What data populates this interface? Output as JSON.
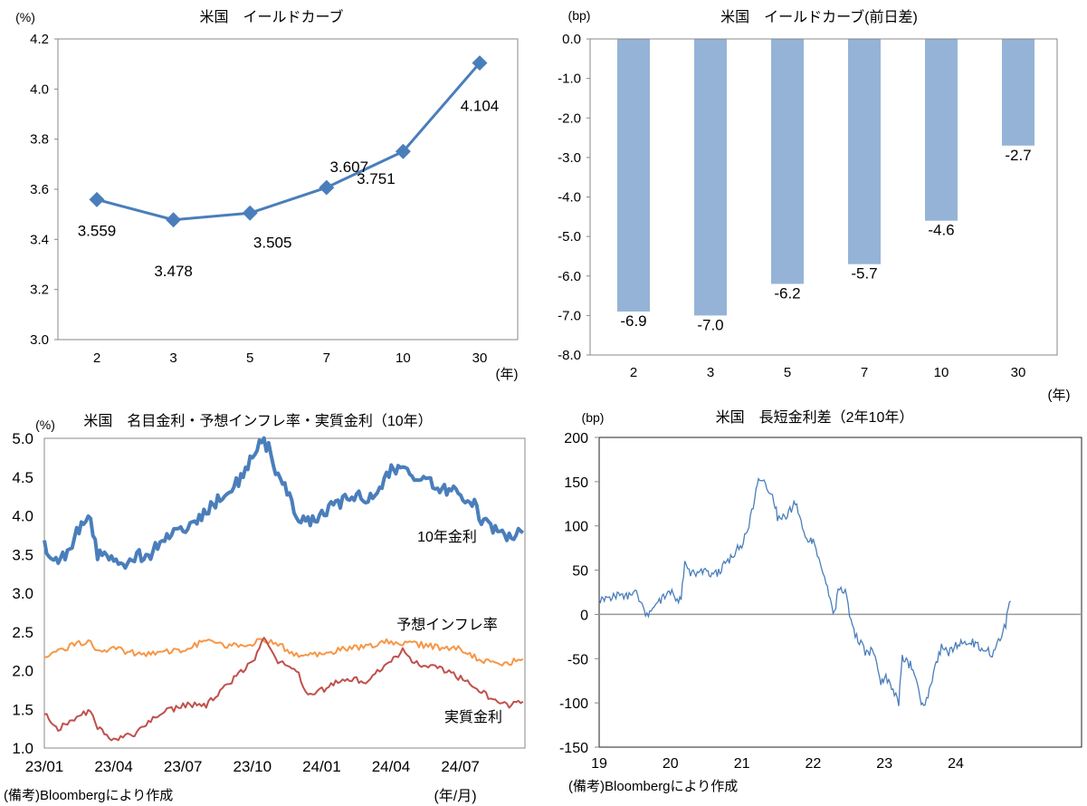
{
  "chart_data": [
    {
      "type": "line",
      "title": "米国　イールドカーブ",
      "ylabel": "(%)",
      "xlabel": "(年)",
      "ylim": [
        3.0,
        4.2
      ],
      "yticks": [
        "3.0",
        "3.2",
        "3.4",
        "3.6",
        "3.8",
        "4.0",
        "4.2"
      ],
      "categories": [
        "2",
        "3",
        "5",
        "7",
        "10",
        "30"
      ],
      "values": [
        3.559,
        3.478,
        3.505,
        3.607,
        3.751,
        4.104
      ],
      "labels": [
        "3.559",
        "3.478",
        "3.505",
        "3.607",
        "3.751",
        "4.104"
      ],
      "color": "#4a7ebb"
    },
    {
      "type": "bar",
      "title": "米国　イールドカーブ(前日差)",
      "ylabel": "(bp)",
      "xlabel": "(年)",
      "ylim": [
        -8.0,
        0.0
      ],
      "yticks": [
        "0.0",
        "-1.0",
        "-2.0",
        "-3.0",
        "-4.0",
        "-5.0",
        "-6.0",
        "-7.0",
        "-8.0"
      ],
      "categories": [
        "2",
        "3",
        "5",
        "7",
        "10",
        "30"
      ],
      "values": [
        -6.9,
        -7.0,
        -6.2,
        -5.7,
        -4.6,
        -2.7
      ],
      "labels": [
        "-6.9",
        "-7.0",
        "-6.2",
        "-5.7",
        "-4.6",
        "-2.7"
      ],
      "color": "#95b3d7"
    },
    {
      "type": "line",
      "title": "米国　名目金利・予想インフレ率・実質金利（10年）",
      "ylabel": "(%)",
      "xlabel": "(年/月)",
      "ylim": [
        1.0,
        5.0
      ],
      "yticks": [
        "1.0",
        "1.5",
        "2.0",
        "2.5",
        "3.0",
        "3.5",
        "4.0",
        "4.5",
        "5.0"
      ],
      "xticks": [
        "23/01",
        "23/04",
        "23/07",
        "23/10",
        "24/01",
        "24/04",
        "24/07"
      ],
      "x_unit": "months since 2023/01",
      "note": "(備考)Bloombergにより作成",
      "series": [
        {
          "name": "10年金利",
          "color": "#4a7ebb",
          "points": [
            [
              0,
              3.6
            ],
            [
              0.5,
              3.45
            ],
            [
              1,
              3.5
            ],
            [
              1.5,
              3.85
            ],
            [
              2,
              3.95
            ],
            [
              2.3,
              3.5
            ],
            [
              3,
              3.45
            ],
            [
              3.6,
              3.35
            ],
            [
              4,
              3.5
            ],
            [
              4.5,
              3.45
            ],
            [
              5,
              3.65
            ],
            [
              5.5,
              3.75
            ],
            [
              6,
              3.8
            ],
            [
              6.5,
              3.9
            ],
            [
              7,
              4.05
            ],
            [
              7.5,
              4.2
            ],
            [
              8,
              4.3
            ],
            [
              8.5,
              4.5
            ],
            [
              9,
              4.75
            ],
            [
              9.3,
              4.95
            ],
            [
              9.7,
              4.9
            ],
            [
              10,
              4.5
            ],
            [
              10.5,
              4.35
            ],
            [
              11,
              3.95
            ],
            [
              11.5,
              3.9
            ],
            [
              12,
              4.0
            ],
            [
              12.5,
              4.15
            ],
            [
              13,
              4.2
            ],
            [
              13.5,
              4.3
            ],
            [
              14,
              4.2
            ],
            [
              14.5,
              4.35
            ],
            [
              15,
              4.6
            ],
            [
              15.5,
              4.65
            ],
            [
              16,
              4.45
            ],
            [
              16.5,
              4.5
            ],
            [
              17,
              4.3
            ],
            [
              17.5,
              4.35
            ],
            [
              18,
              4.25
            ],
            [
              18.5,
              4.2
            ],
            [
              19,
              3.9
            ],
            [
              19.5,
              3.85
            ],
            [
              20,
              3.7
            ],
            [
              20.7,
              3.78
            ]
          ]
        },
        {
          "name": "予想インフレ率",
          "color": "#f79646",
          "points": [
            [
              0,
              2.2
            ],
            [
              1,
              2.3
            ],
            [
              2,
              2.4
            ],
            [
              2.3,
              2.25
            ],
            [
              3,
              2.28
            ],
            [
              4,
              2.22
            ],
            [
              5,
              2.22
            ],
            [
              6,
              2.28
            ],
            [
              7,
              2.38
            ],
            [
              8,
              2.32
            ],
            [
              9,
              2.35
            ],
            [
              9.5,
              2.4
            ],
            [
              10,
              2.35
            ],
            [
              11,
              2.2
            ],
            [
              12,
              2.22
            ],
            [
              13,
              2.28
            ],
            [
              14,
              2.32
            ],
            [
              15,
              2.38
            ],
            [
              16,
              2.35
            ],
            [
              17,
              2.3
            ],
            [
              18,
              2.28
            ],
            [
              19,
              2.12
            ],
            [
              20,
              2.1
            ],
            [
              20.7,
              2.15
            ]
          ]
        },
        {
          "name": "実質金利",
          "color": "#c0504d",
          "points": [
            [
              0,
              1.45
            ],
            [
              0.5,
              1.25
            ],
            [
              1,
              1.3
            ],
            [
              2,
              1.5
            ],
            [
              2.3,
              1.25
            ],
            [
              3,
              1.1
            ],
            [
              4,
              1.2
            ],
            [
              5,
              1.45
            ],
            [
              6,
              1.55
            ],
            [
              7,
              1.55
            ],
            [
              8,
              1.85
            ],
            [
              9,
              2.1
            ],
            [
              9.5,
              2.45
            ],
            [
              10,
              2.15
            ],
            [
              11,
              1.95
            ],
            [
              11.3,
              1.7
            ],
            [
              12,
              1.75
            ],
            [
              13,
              1.9
            ],
            [
              14,
              1.85
            ],
            [
              15,
              2.15
            ],
            [
              15.5,
              2.25
            ],
            [
              16,
              2.1
            ],
            [
              17,
              2.05
            ],
            [
              18,
              1.9
            ],
            [
              19,
              1.7
            ],
            [
              20,
              1.55
            ],
            [
              20.7,
              1.6
            ]
          ]
        }
      ]
    },
    {
      "type": "line",
      "title": "米国　長短金利差（2年10年）",
      "ylabel": "(bp)",
      "ylim": [
        -150,
        200
      ],
      "yticks": [
        "-150",
        "-100",
        "-50",
        "0",
        "50",
        "100",
        "150",
        "200"
      ],
      "xticks": [
        "19",
        "20",
        "21",
        "22",
        "23",
        "24"
      ],
      "note": "(備考)Bloombergにより作成",
      "series": [
        {
          "name": "長短金利差",
          "color": "#4a7ebb",
          "points": [
            [
              19.0,
              17
            ],
            [
              19.2,
              20
            ],
            [
              19.4,
              22
            ],
            [
              19.5,
              25
            ],
            [
              19.6,
              15
            ],
            [
              19.65,
              -3
            ],
            [
              19.75,
              5
            ],
            [
              19.9,
              20
            ],
            [
              20.0,
              25
            ],
            [
              20.15,
              15
            ],
            [
              20.2,
              60
            ],
            [
              20.3,
              45
            ],
            [
              20.45,
              50
            ],
            [
              20.6,
              42
            ],
            [
              20.75,
              55
            ],
            [
              20.9,
              70
            ],
            [
              21.0,
              80
            ],
            [
              21.1,
              100
            ],
            [
              21.2,
              140
            ],
            [
              21.25,
              155
            ],
            [
              21.35,
              145
            ],
            [
              21.45,
              130
            ],
            [
              21.5,
              110
            ],
            [
              21.6,
              108
            ],
            [
              21.75,
              125
            ],
            [
              21.85,
              100
            ],
            [
              21.95,
              80
            ],
            [
              22.0,
              85
            ],
            [
              22.1,
              60
            ],
            [
              22.2,
              30
            ],
            [
              22.3,
              0
            ],
            [
              22.35,
              30
            ],
            [
              22.45,
              25
            ],
            [
              22.55,
              -15
            ],
            [
              22.65,
              -30
            ],
            [
              22.75,
              -45
            ],
            [
              22.85,
              -40
            ],
            [
              22.95,
              -80
            ],
            [
              23.0,
              -70
            ],
            [
              23.1,
              -80
            ],
            [
              23.2,
              -100
            ],
            [
              23.25,
              -50
            ],
            [
              23.4,
              -60
            ],
            [
              23.5,
              -95
            ],
            [
              23.55,
              -105
            ],
            [
              23.65,
              -80
            ],
            [
              23.8,
              -35
            ],
            [
              23.9,
              -45
            ],
            [
              24.0,
              -35
            ],
            [
              24.2,
              -30
            ],
            [
              24.4,
              -40
            ],
            [
              24.55,
              -45
            ],
            [
              24.6,
              -30
            ],
            [
              24.7,
              -10
            ],
            [
              24.77,
              15
            ]
          ]
        }
      ]
    }
  ]
}
